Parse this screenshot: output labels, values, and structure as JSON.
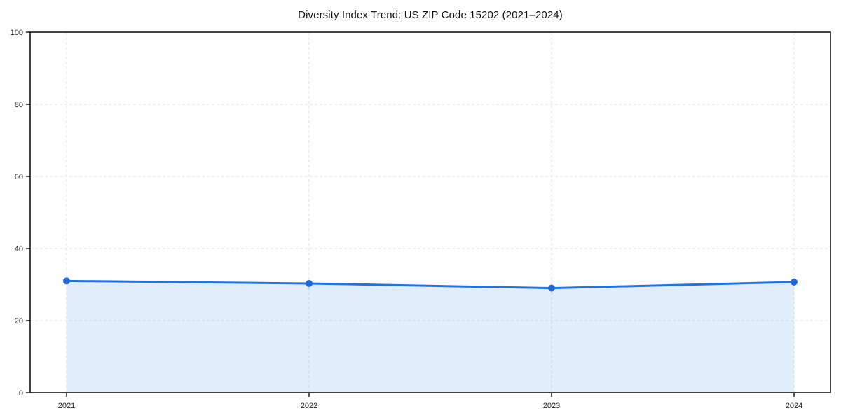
{
  "figure": {
    "background": "#ffffff"
  },
  "chart_data": {
    "type": "line",
    "title": "Diversity Index Trend: US ZIP Code 15202 (2021–2024)",
    "x": [
      "2021",
      "2022",
      "2023",
      "2024"
    ],
    "values": [
      31.0,
      30.3,
      29.0,
      30.7
    ],
    "xlabel": "",
    "ylabel": "",
    "ylim": [
      0,
      100
    ],
    "yticks": [
      0,
      20,
      40,
      60,
      80,
      100
    ],
    "grid": "dashed",
    "legend": "none",
    "area_fill": true,
    "line_color": "#2273e2",
    "marker_color": "#1f68d9",
    "fill_color": "rgba(34, 115, 226, 0.13)",
    "grid_color": "#e2e2e2",
    "axis_color": "#151515",
    "tick_label_color": "#222222"
  }
}
